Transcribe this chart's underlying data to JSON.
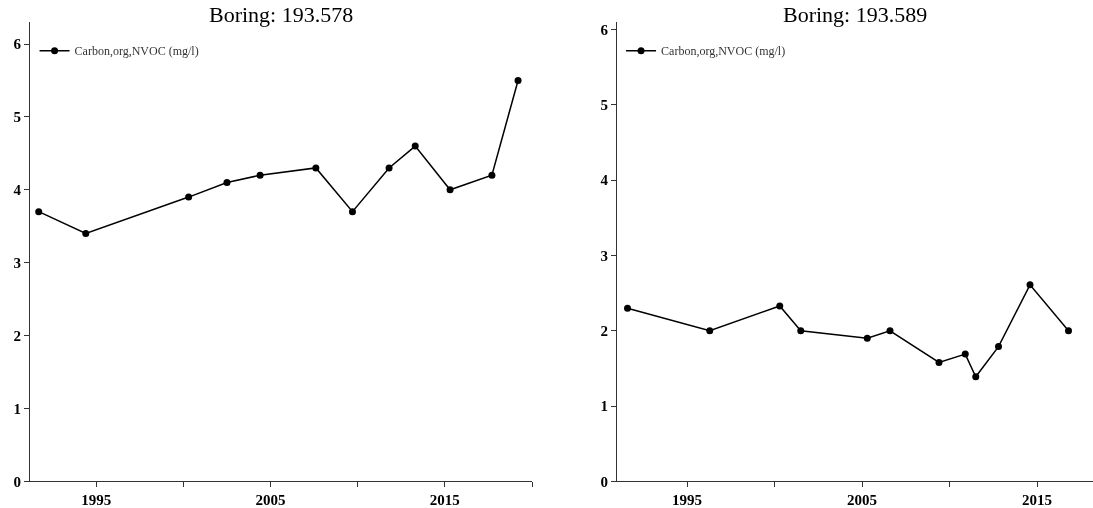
{
  "chart_data": [
    {
      "type": "line",
      "title": "Boring: 193.578",
      "marker": "circle",
      "line_style": "solid",
      "legend": "top left",
      "series": [
        {
          "name": "Carbon,org,NVOC (mg/l)",
          "color": "#000000",
          "x": [
            1991.7,
            1994.4,
            2000.3,
            2002.5,
            2004.4,
            2007.6,
            2009.7,
            2011.8,
            2013.3,
            2015.3,
            2017.7,
            2019.2
          ],
          "values": [
            3.7,
            3.4,
            3.9,
            4.1,
            4.2,
            4.3,
            3.7,
            4.3,
            4.6,
            4.0,
            4.2,
            5.5
          ]
        }
      ],
      "xlim": [
        1991.2,
        2020
      ],
      "xticks": [
        1995,
        {
          "value": 2000,
          "label": null
        },
        2005,
        {
          "value": 2010,
          "label": null
        },
        2015,
        {
          "value": 2020,
          "label": null
        }
      ],
      "ylim": [
        0,
        6.3
      ],
      "yticks": [
        0,
        1,
        2,
        3,
        4,
        5,
        6
      ]
    },
    {
      "type": "line",
      "title": "Boring: 193.589",
      "marker": "circle",
      "line_style": "solid",
      "legend": "top left",
      "series": [
        {
          "name": "Carbon,org,NVOC (mg/l)",
          "color": "#000000",
          "x": [
            1991.6,
            1996.3,
            2000.3,
            2001.5,
            2005.3,
            2006.6,
            2009.4,
            2010.9,
            2011.5,
            2012.8,
            2014.6,
            2016.8
          ],
          "values": [
            2.3,
            2.0,
            2.33,
            2.0,
            1.9,
            2.0,
            1.58,
            1.69,
            1.39,
            1.79,
            2.61,
            2.0
          ]
        }
      ],
      "xlim": [
        1991.0,
        2018.2
      ],
      "xticks": [
        1995,
        {
          "value": 2000,
          "label": null
        },
        2005,
        {
          "value": 2010,
          "label": null
        },
        2015
      ],
      "ylim": [
        0,
        6.1
      ],
      "yticks": [
        0,
        1,
        2,
        3,
        4,
        5,
        6
      ]
    }
  ]
}
